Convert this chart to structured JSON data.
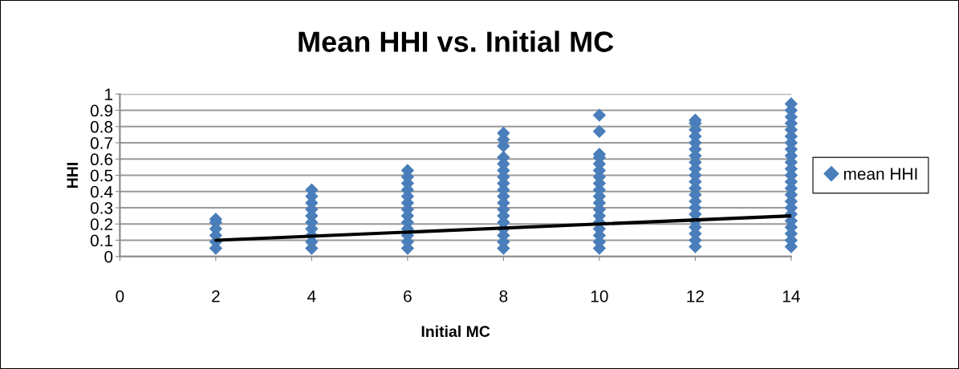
{
  "chart_data": {
    "type": "scatter",
    "title": "Mean HHI vs. Initial MC",
    "xlabel": "Initial MC",
    "ylabel": "HHI",
    "xlim": [
      0,
      14
    ],
    "xticks": [
      0,
      2,
      4,
      6,
      8,
      10,
      12,
      14
    ],
    "ylim": [
      0,
      1
    ],
    "yticks": [
      0,
      0.1,
      0.2,
      0.3,
      0.4,
      0.5,
      0.6,
      0.7,
      0.8,
      0.9,
      1
    ],
    "grid": "y",
    "legend": "right",
    "marker": "diamond",
    "series": [
      {
        "name": "mean HHI",
        "color": "#4a7ebb",
        "x": [
          2,
          2,
          2,
          2,
          2,
          2,
          4,
          4,
          4,
          4,
          4,
          4,
          4,
          4,
          4,
          4,
          6,
          6,
          6,
          6,
          6,
          6,
          6,
          6,
          6,
          6,
          6,
          6,
          6,
          8,
          8,
          8,
          8,
          8,
          8,
          8,
          8,
          8,
          8,
          8,
          8,
          8,
          8,
          8,
          8,
          8,
          8,
          10,
          10,
          10,
          10,
          10,
          10,
          10,
          10,
          10,
          10,
          10,
          10,
          10,
          10,
          10,
          10,
          10,
          10,
          12,
          12,
          12,
          12,
          12,
          12,
          12,
          12,
          12,
          12,
          12,
          12,
          12,
          12,
          12,
          12,
          12,
          12,
          12,
          12,
          12,
          14,
          14,
          14,
          14,
          14,
          14,
          14,
          14,
          14,
          14,
          14,
          14,
          14,
          14,
          14,
          14,
          14,
          14,
          14,
          14,
          14,
          14,
          14
        ],
        "values": [
          0.05,
          0.09,
          0.13,
          0.17,
          0.21,
          0.23,
          0.05,
          0.09,
          0.13,
          0.17,
          0.21,
          0.25,
          0.29,
          0.33,
          0.37,
          0.41,
          0.05,
          0.09,
          0.13,
          0.17,
          0.21,
          0.25,
          0.29,
          0.33,
          0.37,
          0.41,
          0.45,
          0.49,
          0.53,
          0.05,
          0.09,
          0.13,
          0.17,
          0.21,
          0.25,
          0.29,
          0.33,
          0.37,
          0.41,
          0.45,
          0.49,
          0.53,
          0.57,
          0.61,
          0.68,
          0.72,
          0.76,
          0.05,
          0.09,
          0.13,
          0.17,
          0.21,
          0.25,
          0.29,
          0.33,
          0.37,
          0.41,
          0.45,
          0.49,
          0.53,
          0.57,
          0.61,
          0.63,
          0.77,
          0.87,
          0.06,
          0.1,
          0.14,
          0.18,
          0.22,
          0.26,
          0.3,
          0.34,
          0.38,
          0.42,
          0.46,
          0.5,
          0.54,
          0.58,
          0.62,
          0.66,
          0.7,
          0.74,
          0.78,
          0.82,
          0.84,
          0.06,
          0.1,
          0.14,
          0.18,
          0.22,
          0.26,
          0.3,
          0.34,
          0.38,
          0.42,
          0.46,
          0.5,
          0.54,
          0.58,
          0.62,
          0.66,
          0.7,
          0.74,
          0.78,
          0.82,
          0.86,
          0.9,
          0.94
        ]
      },
      {
        "type": "line",
        "marker": "none",
        "color": "#000000",
        "x": [
          2,
          14
        ],
        "values": [
          0.1,
          0.25
        ]
      }
    ]
  }
}
